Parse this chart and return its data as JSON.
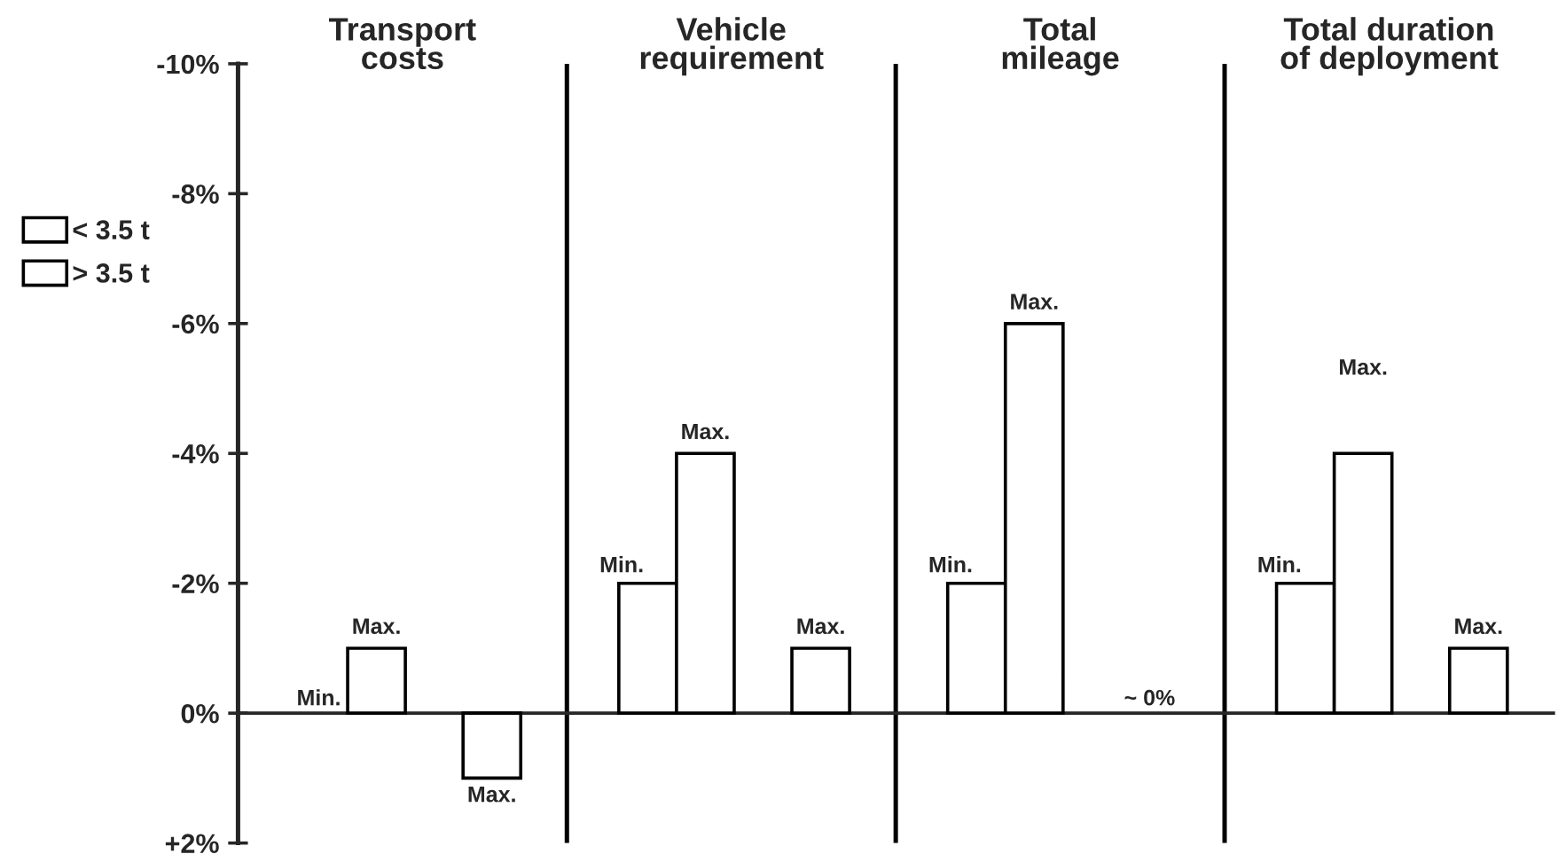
{
  "chart_data": {
    "type": "bar",
    "categories": [
      "Transport\ncosts",
      "Vehicle\nrequirement",
      "Total\nmileage",
      "Total duration\nof deployment"
    ],
    "series": [
      {
        "name": "< 3.5 t",
        "color": "#ffffff",
        "values": [
          0,
          -2,
          -2,
          -2
        ],
        "value_labels": [
          "Min.",
          "Min.",
          "Min.",
          "Min."
        ]
      },
      {
        "color": "#ffffff",
        "values": [
          -1,
          -4,
          -6,
          -4
        ],
        "value_labels": [
          "Max.",
          "Max.",
          "Max.",
          null
        ]
      },
      {
        "name": "> 3.5 t",
        "color": "#ffffff",
        "values": [
          1,
          -1,
          0,
          -1
        ],
        "value_labels": [
          "Max.",
          "Max.",
          "~ 0%",
          "Max."
        ]
      }
    ],
    "ylim": [
      2,
      -10
    ],
    "yticks": [
      {
        "value": 2,
        "label": "+2%"
      },
      {
        "value": 0,
        "label": "0%"
      },
      {
        "value": -2,
        "label": "-2%"
      },
      {
        "value": -4,
        "label": "-4%"
      },
      {
        "value": -6,
        "label": "-6%"
      },
      {
        "value": -8,
        "label": "-8%"
      },
      {
        "value": -10,
        "label": "-10%"
      }
    ],
    "annotations": [
      "Max."
    ],
    "legend": "left",
    "grid": false
  }
}
